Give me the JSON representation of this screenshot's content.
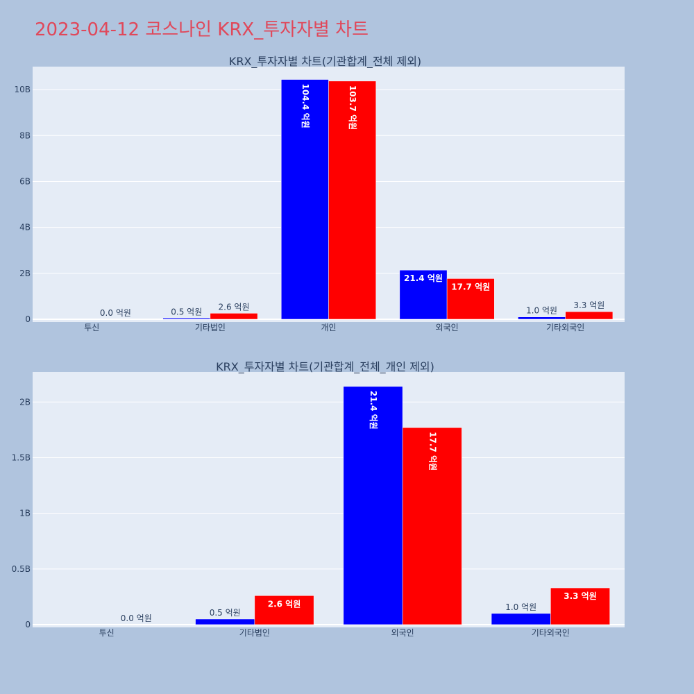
{
  "page": {
    "title": "2023-04-12 코스나인 KRX_투자자별 차트"
  },
  "colors": {
    "series1": "#0000ff",
    "series2": "#ff0000",
    "background": "#b0c4de",
    "plot_bg": "#e5ecf6",
    "title": "#e0485a"
  },
  "chart_data": [
    {
      "type": "bar",
      "title": "KRX_투자자별 차트(기관합계_전체 제외)",
      "categories": [
        "투신",
        "기타법인",
        "개인",
        "외국인",
        "기타외국인"
      ],
      "ylim": [
        0,
        11000000000
      ],
      "yticks": [
        0,
        2000000000,
        4000000000,
        6000000000,
        8000000000,
        10000000000
      ],
      "ytick_labels": [
        "0",
        "2B",
        "4B",
        "6B",
        "8B",
        "10B"
      ],
      "grid": true,
      "series": [
        {
          "values": [
            0,
            50000000,
            10440000000,
            2140000000,
            100000000
          ],
          "labels": [
            "",
            "0.5 억원",
            "104.4 억원",
            "21.4 억원",
            "1.0 억원"
          ]
        },
        {
          "values": [
            0,
            260000000,
            10370000000,
            1770000000,
            330000000
          ],
          "labels": [
            "0.0 억원",
            "2.6 억원",
            "103.7 억원",
            "17.7 억원",
            "3.3 억원"
          ]
        }
      ]
    },
    {
      "type": "bar",
      "title": "KRX_투자자별 차트(기관합계_전체_개인 제외)",
      "categories": [
        "투신",
        "기타법인",
        "외국인",
        "기타외국인"
      ],
      "ylim": [
        0,
        2270000000
      ],
      "yticks": [
        0,
        500000000,
        1000000000,
        1500000000,
        2000000000
      ],
      "ytick_labels": [
        "0",
        "0.5B",
        "1B",
        "1.5B",
        "2B"
      ],
      "grid": true,
      "series": [
        {
          "values": [
            0,
            50000000,
            2140000000,
            100000000
          ],
          "labels": [
            "",
            "0.5 억원",
            "21.4 억원",
            "1.0 억원"
          ]
        },
        {
          "values": [
            0,
            260000000,
            1770000000,
            330000000
          ],
          "labels": [
            "0.0 억원",
            "2.6 억원",
            "17.7 억원",
            "3.3 억원"
          ]
        }
      ]
    }
  ]
}
